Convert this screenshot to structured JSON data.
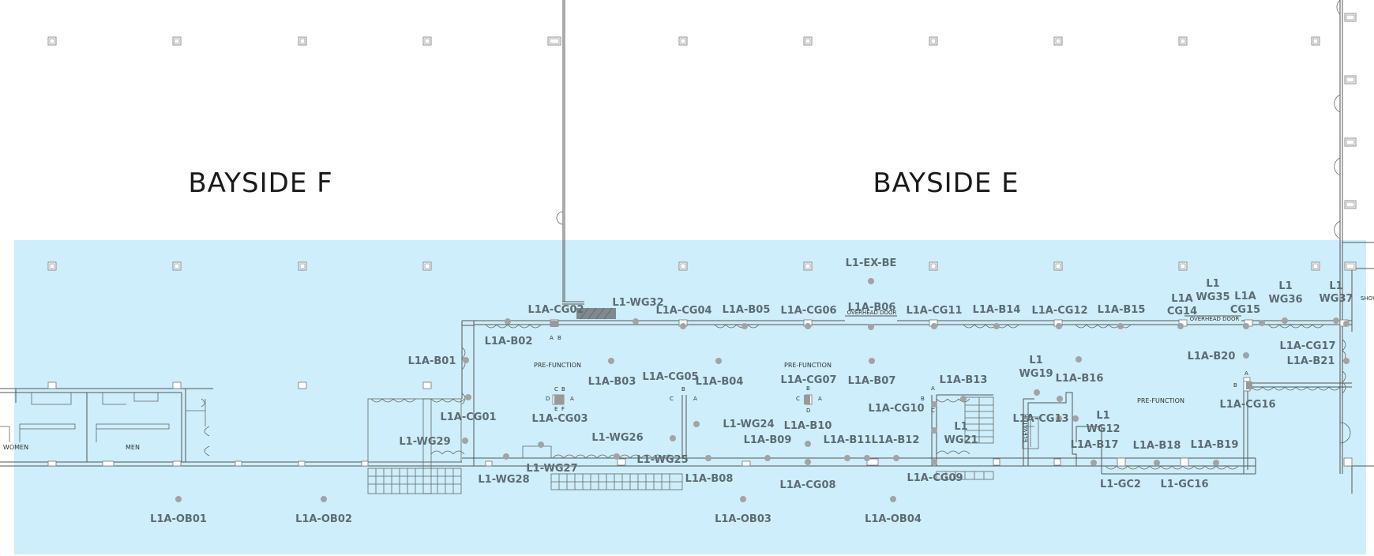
{
  "rooms": [
    {
      "id": "bayside-f",
      "label": "BAYSIDE F"
    },
    {
      "id": "bayside-e",
      "label": "BAYSIDE E"
    }
  ],
  "colors": {
    "zone_fill": "#cdeefa",
    "dot": "#a3a3a3",
    "booth_text": "#5d6b73"
  },
  "area_labels": {
    "prefunction_1": "PRE-FUNCTION",
    "prefunction_2": "PRE-FUNCTION",
    "prefunction_3": "PRE-FUNCTION",
    "overhead_door_1": "OVERHEAD DOOR",
    "overhead_door_2": "OVERHEAD DOOR",
    "women": "WOMEN",
    "men": "MEN",
    "elevator": "ELEVATOR",
    "show": "SHOW"
  },
  "booths": [
    {
      "id": "L1-EX-BE",
      "label": "L1-EX-BE"
    },
    {
      "id": "L1A-CG02",
      "label": "L1A-CG02"
    },
    {
      "id": "L1-WG32",
      "label": "L1-WG32"
    },
    {
      "id": "L1A-CG04",
      "label": "L1A-CG04"
    },
    {
      "id": "L1A-B05",
      "label": "L1A-B05"
    },
    {
      "id": "L1A-CG06",
      "label": "L1A-CG06"
    },
    {
      "id": "L1A-B06",
      "label": "L1A-B06"
    },
    {
      "id": "L1A-CG11",
      "label": "L1A-CG11"
    },
    {
      "id": "L1A-B14",
      "label": "L1A-B14"
    },
    {
      "id": "L1A-CG12",
      "label": "L1A-CG12"
    },
    {
      "id": "L1A-B15",
      "label": "L1A-B15"
    },
    {
      "id": "L1A-CG14-a",
      "label": "L1A"
    },
    {
      "id": "L1A-CG14-b",
      "label": "CG14"
    },
    {
      "id": "L1-WG35-a",
      "label": "L1"
    },
    {
      "id": "L1-WG35-b",
      "label": "WG35"
    },
    {
      "id": "L1A-CG15-a",
      "label": "L1A"
    },
    {
      "id": "L1A-CG15-b",
      "label": "CG15"
    },
    {
      "id": "L1-WG36-a",
      "label": "L1"
    },
    {
      "id": "L1-WG36-b",
      "label": "WG36"
    },
    {
      "id": "L1-WG37-a",
      "label": "L1"
    },
    {
      "id": "L1-WG37-b",
      "label": "WG37"
    },
    {
      "id": "L1A-B02",
      "label": "L1A-B02"
    },
    {
      "id": "L1A-B01",
      "label": "L1A-B01"
    },
    {
      "id": "L1A-B03",
      "label": "L1A-B03"
    },
    {
      "id": "L1A-CG05",
      "label": "L1A-CG05"
    },
    {
      "id": "L1A-B04",
      "label": "L1A-B04"
    },
    {
      "id": "L1A-CG07",
      "label": "L1A-CG07"
    },
    {
      "id": "L1A-B07",
      "label": "L1A-B07"
    },
    {
      "id": "L1A-B13",
      "label": "L1A-B13"
    },
    {
      "id": "L1-WG19-a",
      "label": "L1"
    },
    {
      "id": "L1-WG19-b",
      "label": "WG19"
    },
    {
      "id": "L1A-B16",
      "label": "L1A-B16"
    },
    {
      "id": "L1A-CG17",
      "label": "L1A-CG17"
    },
    {
      "id": "L1A-B20",
      "label": "L1A-B20"
    },
    {
      "id": "L1A-B21",
      "label": "L1A-B21"
    },
    {
      "id": "L1A-CG16",
      "label": "L1A-CG16"
    },
    {
      "id": "L1A-CG01",
      "label": "L1A-CG01"
    },
    {
      "id": "L1A-CG03",
      "label": "L1A-CG03"
    },
    {
      "id": "L1A-CG10",
      "label": "L1A-CG10"
    },
    {
      "id": "L1A-CG13",
      "label": "L1A-CG13"
    },
    {
      "id": "L1-WG12-a",
      "label": "L1"
    },
    {
      "id": "L1-WG12-b",
      "label": "WG12"
    },
    {
      "id": "L1-WG24",
      "label": "L1-WG24"
    },
    {
      "id": "L1A-B10",
      "label": "L1A-B10"
    },
    {
      "id": "L1-WG21-a",
      "label": "L1"
    },
    {
      "id": "L1-WG21-b",
      "label": "WG21"
    },
    {
      "id": "L1-WG29",
      "label": "L1-WG29"
    },
    {
      "id": "L1-WG26",
      "label": "L1-WG26"
    },
    {
      "id": "L1A-B09",
      "label": "L1A-B09"
    },
    {
      "id": "L1A-B11",
      "label": "L1A-B11"
    },
    {
      "id": "L1A-B12",
      "label": "L1A-B12"
    },
    {
      "id": "L1A-B17",
      "label": "L1A-B17"
    },
    {
      "id": "L1A-B18",
      "label": "L1A-B18"
    },
    {
      "id": "L1A-B19",
      "label": "L1A-B19"
    },
    {
      "id": "L1-WG25",
      "label": "L1-WG25"
    },
    {
      "id": "L1-WG27",
      "label": "L1-WG27"
    },
    {
      "id": "L1-WG28",
      "label": "L1-WG28"
    },
    {
      "id": "L1A-B08",
      "label": "L1A-B08"
    },
    {
      "id": "L1A-CG09",
      "label": "L1A-CG09"
    },
    {
      "id": "L1A-CG08",
      "label": "L1A-CG08"
    },
    {
      "id": "L1-GC2",
      "label": "L1-GC2"
    },
    {
      "id": "L1-GC16",
      "label": "L1-GC16"
    },
    {
      "id": "L1A-OB01",
      "label": "L1A-OB01"
    },
    {
      "id": "L1A-OB02",
      "label": "L1A-OB02"
    },
    {
      "id": "L1A-OB03",
      "label": "L1A-OB03"
    },
    {
      "id": "L1A-OB04",
      "label": "L1A-OB04"
    }
  ],
  "outlet_letters": {
    "a1": "A",
    "b1": "B",
    "c2": "C",
    "b2": "B",
    "d2": "D",
    "a2": "A",
    "e2": "E",
    "f2": "F",
    "b3": "B",
    "c3": "C",
    "a3": "A",
    "b4": "B",
    "c4": "C",
    "a4": "A",
    "d4": "D",
    "a5": "A",
    "b5": "B",
    "c5": "C",
    "a6": "A",
    "b6": "B"
  }
}
